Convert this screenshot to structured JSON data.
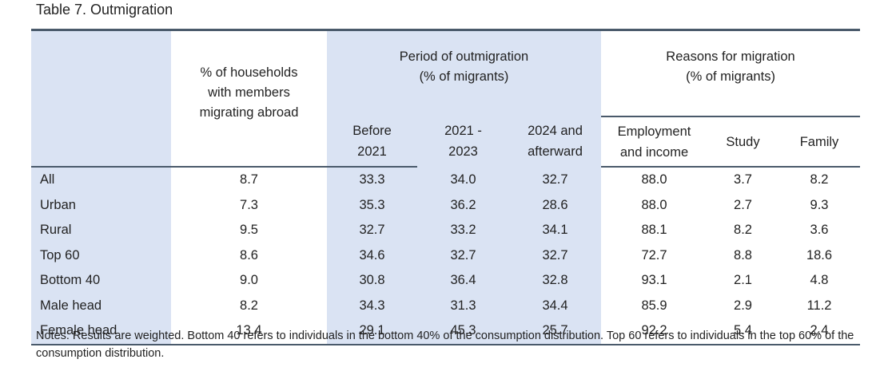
{
  "title": "Table 7. Outmigration",
  "headers": {
    "households": "% of households with members migrating abroad",
    "period_group_line1": "Period of outmigration",
    "period_group_line2": "(% of migrants)",
    "reasons_group_line1": "Reasons for migration",
    "reasons_group_line2": "(% of migrants)",
    "before_line1": "Before",
    "before_line2": "2021",
    "mid_line1": "2021 -",
    "mid_line2": "2023",
    "after_line1": "2024 and",
    "after_line2": "afterward",
    "employment_line1": "Employment",
    "employment_line2": "and income",
    "study": "Study",
    "family": "Family"
  },
  "rows": [
    {
      "label": "All",
      "households": "8.7",
      "before": "33.3",
      "mid": "34.0",
      "after": "32.7",
      "employment": "88.0",
      "study": "3.7",
      "family": "8.2"
    },
    {
      "label": "Urban",
      "households": "7.3",
      "before": "35.3",
      "mid": "36.2",
      "after": "28.6",
      "employment": "88.0",
      "study": "2.7",
      "family": "9.3"
    },
    {
      "label": "Rural",
      "households": "9.5",
      "before": "32.7",
      "mid": "33.2",
      "after": "34.1",
      "employment": "88.1",
      "study": "8.2",
      "family": "3.6"
    },
    {
      "label": "Top 60",
      "households": "8.6",
      "before": "34.6",
      "mid": "32.7",
      "after": "32.7",
      "employment": "72.7",
      "study": "8.8",
      "family": "18.6"
    },
    {
      "label": "Bottom 40",
      "households": "9.0",
      "before": "30.8",
      "mid": "36.4",
      "after": "32.8",
      "employment": "93.1",
      "study": "2.1",
      "family": "4.8"
    },
    {
      "label": "Male head",
      "households": "8.2",
      "before": "34.3",
      "mid": "31.3",
      "after": "34.4",
      "employment": "85.9",
      "study": "2.9",
      "family": "11.2"
    },
    {
      "label": "Female head",
      "households": "13.4",
      "before": "29.1",
      "mid": "45.3",
      "after": "25.7",
      "employment": "92.2",
      "study": "5.4",
      "family": "2.4"
    }
  ],
  "notes": "Notes: Results are weighted. Bottom 40 refers to individuals in the bottom 40% of the consumption distribution. Top 60 refers to individuals in the top 60% of the consumption distribution.",
  "colors": {
    "shade": "#dae3f3",
    "rule": "#4a5a6b"
  }
}
